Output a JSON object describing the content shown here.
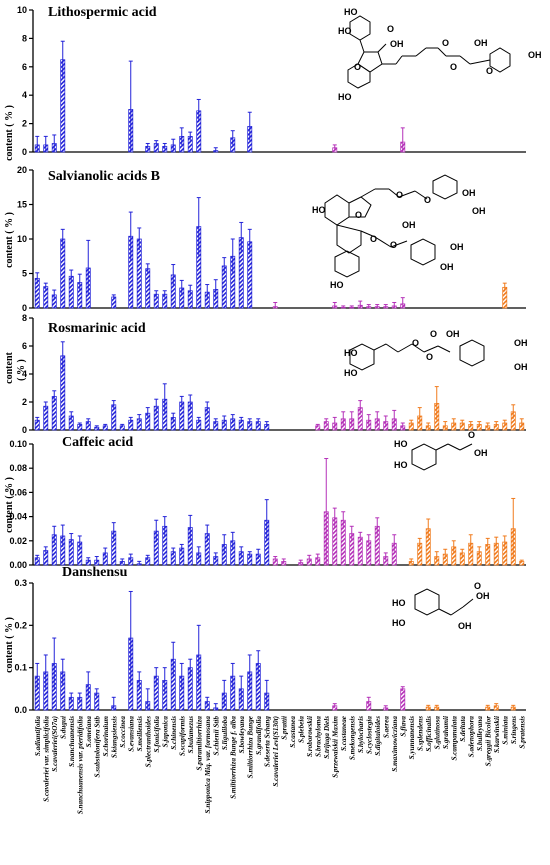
{
  "chart_data": {
    "type": "bar",
    "categories": [
      "S.adiantifolia",
      "S.cavaleriei var. simplicifolia",
      "S.cavaleriei(SO7a)",
      "S.dugui",
      "S.nanchuanensis",
      "S.nanchuanensis var. pteridifolia",
      "S.omeiana",
      "S.substolonifera Stib",
      "S.chorinaium",
      "S.kiangsiensis",
      "S.coccinea",
      "S.evansiana",
      "S.meiliensis",
      "S.plectranthoides",
      "S.fonicifolia",
      "S.japonica",
      "S.chinensis",
      "S.scapiformis",
      "S.bulamezus",
      "S.paramiltiorrhiza",
      "S.nipponica Miq. var. formosana",
      "S.chienii Stib",
      "S.liguliloba",
      "S.miltiorrhiza Bunge f. alba",
      "S.bowleyana",
      "S.miltiorrhiza Bunge",
      "S.grandifolia",
      "S.deserta Schang",
      "S.cavaleriei Levl(S130t)",
      "S.prattii",
      "S.castanea",
      "S.plebeia",
      "S.roborowskii",
      "S.brachyloma",
      "S.trijuga Diels",
      "S.przewalskii Maxim",
      "S.castaneae",
      "S.mekongensis",
      "S.hylocharis",
      "S.cyclostegia",
      "S.digitaloides",
      "S.aerea",
      "S.maximowicziana",
      "S.flava",
      "S.yunnanensis",
      "S.splendens",
      "S.officinalis",
      "S.glutinosa",
      "S.grahamii",
      "S.campanulata",
      "S.deltata",
      "S.adenophora",
      "S.bulleyana",
      "S.greggii Bicolor",
      "S.karwinskii",
      "S.miniata",
      "S.ringens",
      "S.pratensis"
    ],
    "groups": {
      "blue": [
        0,
        27
      ],
      "purple": [
        28,
        43
      ],
      "orange": [
        44,
        57
      ]
    },
    "colors": {
      "blue": "#2323d8",
      "purple": "#b430b8",
      "orange": "#f07a1c"
    },
    "panels": [
      {
        "title": "Lithospermic acid",
        "ylabel": "content ( % )",
        "ylim": [
          0,
          10
        ],
        "yticks": [
          "0",
          "2",
          "4",
          "6",
          "8",
          "10"
        ],
        "values": [
          0.5,
          0.5,
          0.6,
          6.5,
          0,
          0,
          0,
          0,
          0,
          0,
          0,
          3.0,
          0,
          0.4,
          0.6,
          0.4,
          0.5,
          1.1,
          1.1,
          2.9,
          0,
          0.1,
          0,
          1.0,
          0,
          1.8,
          0,
          0,
          0,
          0,
          0,
          0,
          0,
          0,
          0,
          0.3,
          0,
          0,
          0,
          0,
          0,
          0,
          0,
          0.7,
          0,
          0,
          0,
          0,
          0,
          0,
          0,
          0,
          0,
          0,
          0,
          0,
          0,
          0
        ],
        "errors": [
          0.6,
          0.6,
          0.6,
          1.3,
          0,
          0,
          0,
          0,
          0,
          0,
          0,
          3.4,
          0,
          0.2,
          0.2,
          0.2,
          0.4,
          0.6,
          0.3,
          0.8,
          0,
          0.2,
          0,
          0.5,
          0,
          1.0,
          0,
          0,
          0,
          0,
          0,
          0,
          0,
          0,
          0,
          0.2,
          0,
          0,
          0,
          0,
          0,
          0,
          0,
          1.0,
          0,
          0,
          0,
          0,
          0,
          0,
          0,
          0,
          0,
          0,
          0,
          0,
          0,
          0
        ]
      },
      {
        "title": "Salvianolic acids B",
        "ylabel": "content ( % )",
        "ylim": [
          0,
          20
        ],
        "yticks": [
          "0",
          "5",
          "10",
          "15",
          "20"
        ],
        "values": [
          4.3,
          3.1,
          1.9,
          10.0,
          4.6,
          3.7,
          5.8,
          0,
          0,
          1.6,
          0,
          10.4,
          10.0,
          5.7,
          2.0,
          2.0,
          4.8,
          2.9,
          2.5,
          11.8,
          2.3,
          2.7,
          6.1,
          7.5,
          10.2,
          9.6,
          0,
          0,
          0.2,
          0,
          0,
          0,
          0,
          0,
          0,
          0.3,
          0.1,
          0.1,
          0.4,
          0.2,
          0.2,
          0.2,
          0.3,
          0.6,
          0,
          0,
          0,
          0,
          0,
          0,
          0,
          0,
          0,
          0,
          0,
          3.0,
          0,
          0
        ],
        "errors": [
          0.8,
          0.5,
          0.7,
          1.4,
          0.9,
          1.2,
          4.0,
          0,
          0,
          0.3,
          0,
          3.5,
          1.6,
          0.7,
          0.5,
          0.5,
          1.5,
          1.1,
          0.8,
          4.2,
          1.1,
          1.4,
          1.2,
          2.5,
          2.2,
          1.8,
          0,
          0,
          0.6,
          0,
          0,
          0,
          0,
          0,
          0,
          0.5,
          0.2,
          0.2,
          0.6,
          0.3,
          0.3,
          0.3,
          0.5,
          0.9,
          0,
          0,
          0,
          0,
          0,
          0,
          0,
          0,
          0,
          0,
          0,
          0.6,
          0,
          0
        ]
      },
      {
        "title": "Rosmarinic acid",
        "ylabel": "( % )",
        "ylabel2": "content",
        "ylim": [
          0,
          8
        ],
        "yticks": [
          "0",
          "2",
          "4",
          "6",
          "8"
        ],
        "values": [
          0.7,
          1.7,
          2.4,
          5.3,
          1.0,
          0.4,
          0.6,
          0.2,
          0.3,
          1.8,
          0.3,
          0.7,
          0.8,
          1.2,
          1.7,
          2.2,
          0.9,
          2.0,
          2.0,
          0.7,
          1.6,
          0.6,
          0.7,
          0.8,
          0.7,
          0.6,
          0.6,
          0.4,
          0,
          0,
          0,
          0,
          0,
          0.3,
          0.6,
          0.5,
          0.8,
          0.8,
          1.6,
          0.7,
          0.8,
          0.6,
          0.8,
          0.3,
          0.5,
          1.0,
          0.3,
          1.9,
          0.3,
          0.5,
          0.5,
          0.4,
          0.4,
          0.3,
          0.4,
          0.5,
          1.3,
          0.5
        ],
        "errors": [
          0.2,
          0.3,
          0.4,
          1.0,
          0.3,
          0.1,
          0.2,
          0.1,
          0.1,
          0.3,
          0.1,
          0.2,
          0.3,
          0.4,
          0.5,
          1.1,
          0.3,
          0.4,
          0.5,
          0.2,
          0.4,
          0.2,
          0.3,
          0.3,
          0.2,
          0.2,
          0.2,
          0.2,
          0,
          0,
          0,
          0,
          0,
          0.1,
          0.2,
          0.4,
          0.5,
          0.5,
          0.5,
          0.4,
          0.5,
          0.4,
          0.6,
          0.2,
          0.2,
          0.6,
          0.2,
          1.2,
          0.3,
          0.3,
          0.2,
          0.2,
          0.2,
          0.2,
          0.2,
          0.2,
          0.5,
          0.3
        ]
      },
      {
        "title": "Caffeic acid",
        "ylabel": "content ( % )",
        "ylim": [
          0,
          0.1
        ],
        "yticks": [
          "0.00",
          "0.02",
          "0.04",
          "0.06",
          "0.08",
          "0.10"
        ],
        "values": [
          0.006,
          0.012,
          0.025,
          0.024,
          0.021,
          0.019,
          0.004,
          0.004,
          0.01,
          0.028,
          0.003,
          0.006,
          0.001,
          0.006,
          0.028,
          0.032,
          0.011,
          0.014,
          0.031,
          0.01,
          0.026,
          0.007,
          0.017,
          0.02,
          0.011,
          0.009,
          0.009,
          0.037,
          0.005,
          0.003,
          0,
          0.002,
          0.005,
          0.006,
          0.044,
          0.039,
          0.037,
          0.026,
          0.023,
          0.02,
          0.032,
          0.007,
          0.018,
          0,
          0.003,
          0.018,
          0.03,
          0.007,
          0.009,
          0.015,
          0.01,
          0.018,
          0.011,
          0.017,
          0.018,
          0.019,
          0.03,
          0.003
        ],
        "errors": [
          0.002,
          0.003,
          0.007,
          0.009,
          0.005,
          0.005,
          0.002,
          0.003,
          0.004,
          0.007,
          0.002,
          0.003,
          0.002,
          0.002,
          0.009,
          0.008,
          0.003,
          0.003,
          0.01,
          0.005,
          0.007,
          0.003,
          0.008,
          0.007,
          0.004,
          0.002,
          0.004,
          0.017,
          0.002,
          0.002,
          0,
          0.002,
          0.003,
          0.003,
          0.044,
          0.008,
          0.007,
          0.006,
          0.004,
          0.005,
          0.007,
          0.003,
          0.007,
          0,
          0.002,
          0.004,
          0.008,
          0.004,
          0.004,
          0.005,
          0.003,
          0.007,
          0.004,
          0.005,
          0.005,
          0.005,
          0.025,
          0.001
        ]
      },
      {
        "title": "Danshensu",
        "ylabel": "content ( % )",
        "ylim": [
          0,
          0.3
        ],
        "yticks": [
          "0.0",
          "0.1",
          "0.2",
          "0.3"
        ],
        "values": [
          0.08,
          0.09,
          0.11,
          0.09,
          0.03,
          0.03,
          0.06,
          0.04,
          0,
          0.01,
          0,
          0.17,
          0.07,
          0.02,
          0.08,
          0.07,
          0.12,
          0.08,
          0.1,
          0.13,
          0.02,
          0.005,
          0.04,
          0.08,
          0.05,
          0.09,
          0.11,
          0.04,
          0,
          0,
          0,
          0,
          0,
          0,
          0,
          0.01,
          0,
          0,
          0,
          0.02,
          0,
          0.005,
          0,
          0.05,
          0,
          0,
          0.007,
          0.007,
          0,
          0,
          0,
          0,
          0,
          0.007,
          0.01,
          0,
          0.007,
          0
        ],
        "errors": [
          0.03,
          0.04,
          0.06,
          0.03,
          0.01,
          0.01,
          0.03,
          0.01,
          0,
          0.02,
          0,
          0.11,
          0.02,
          0.03,
          0.02,
          0.03,
          0.04,
          0.03,
          0.02,
          0.07,
          0.01,
          0.01,
          0.03,
          0.03,
          0.03,
          0.04,
          0.03,
          0.03,
          0,
          0,
          0,
          0,
          0,
          0,
          0,
          0.005,
          0,
          0,
          0,
          0.01,
          0,
          0.005,
          0,
          0.005,
          0,
          0,
          0.004,
          0.004,
          0,
          0,
          0,
          0,
          0,
          0.004,
          0.005,
          0,
          0.004,
          0
        ]
      }
    ],
    "structures": [
      {
        "labels": [
          "HO",
          "HO",
          "OH",
          "HO",
          "OH",
          "OH",
          "O",
          "O",
          "O",
          "O",
          "O"
        ]
      },
      {
        "labels": [
          "OH",
          "OH",
          "HO",
          "O",
          "O",
          "O",
          "O",
          "O",
          "OH",
          "OH",
          "HO",
          "OH"
        ]
      },
      {
        "labels": [
          "HO",
          "HO",
          "O",
          "O",
          "OH",
          "OH",
          "OH",
          "O"
        ]
      },
      {
        "labels": [
          "HO",
          "HO",
          "OH",
          "O"
        ]
      },
      {
        "labels": [
          "HO",
          "HO",
          "OH",
          "OH",
          "O"
        ]
      }
    ]
  }
}
